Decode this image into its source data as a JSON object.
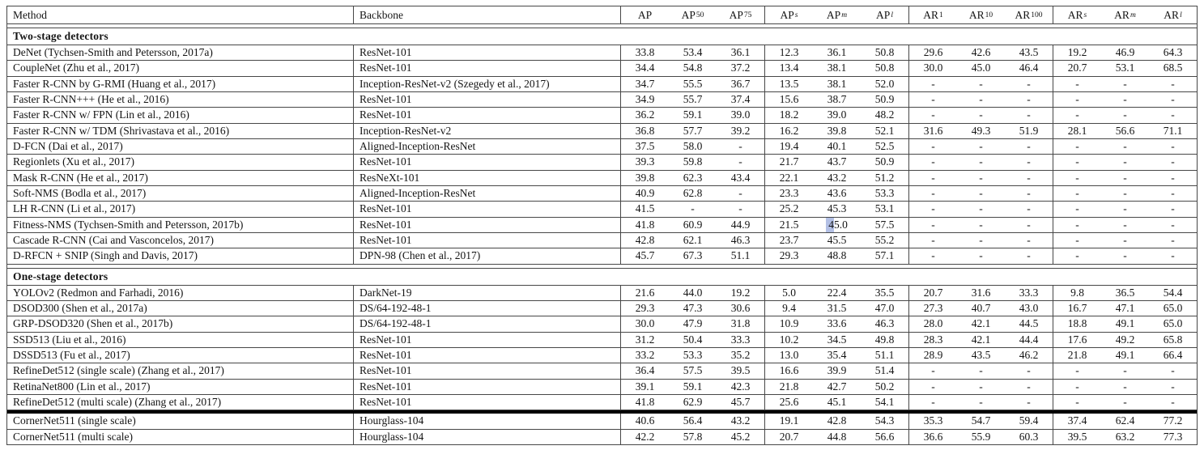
{
  "table": {
    "header": {
      "method": "Method",
      "backbone": "Backbone",
      "metrics": [
        {
          "base": "AP",
          "sup": ""
        },
        {
          "base": "AP",
          "sup": "50"
        },
        {
          "base": "AP",
          "sup": "75"
        },
        {
          "base": "AP",
          "sup": "s"
        },
        {
          "base": "AP",
          "sup": "m"
        },
        {
          "base": "AP",
          "sup": "l"
        },
        {
          "base": "AR",
          "sup": "1"
        },
        {
          "base": "AR",
          "sup": "10"
        },
        {
          "base": "AR",
          "sup": "100"
        },
        {
          "base": "AR",
          "sup": "s"
        },
        {
          "base": "AR",
          "sup": "m"
        },
        {
          "base": "AR",
          "sup": "l"
        }
      ]
    },
    "highlight": {
      "section": 0,
      "row": 11,
      "value": 4,
      "color": "#b3c0e5"
    },
    "sections": [
      {
        "title": "Two-stage detectors",
        "rows": [
          {
            "method": "DeNet (Tychsen-Smith and Petersson, 2017a)",
            "backbone": "ResNet-101",
            "values": [
              "33.8",
              "53.4",
              "36.1",
              "12.3",
              "36.1",
              "50.8",
              "29.6",
              "42.6",
              "43.5",
              "19.2",
              "46.9",
              "64.3"
            ]
          },
          {
            "method": "CoupleNet (Zhu et al., 2017)",
            "backbone": "ResNet-101",
            "values": [
              "34.4",
              "54.8",
              "37.2",
              "13.4",
              "38.1",
              "50.8",
              "30.0",
              "45.0",
              "46.4",
              "20.7",
              "53.1",
              "68.5"
            ]
          },
          {
            "method": "Faster R-CNN by G-RMI (Huang et al., 2017)",
            "backbone": "Inception-ResNet-v2 (Szegedy et al., 2017)",
            "values": [
              "34.7",
              "55.5",
              "36.7",
              "13.5",
              "38.1",
              "52.0",
              "-",
              "-",
              "-",
              "-",
              "-",
              "-"
            ]
          },
          {
            "method": "Faster R-CNN+++ (He et al., 2016)",
            "backbone": "ResNet-101",
            "values": [
              "34.9",
              "55.7",
              "37.4",
              "15.6",
              "38.7",
              "50.9",
              "-",
              "-",
              "-",
              "-",
              "-",
              "-"
            ]
          },
          {
            "method": "Faster R-CNN w/ FPN (Lin et al., 2016)",
            "backbone": "ResNet-101",
            "values": [
              "36.2",
              "59.1",
              "39.0",
              "18.2",
              "39.0",
              "48.2",
              "-",
              "-",
              "-",
              "-",
              "-",
              "-"
            ]
          },
          {
            "method": "Faster R-CNN w/ TDM (Shrivastava et al., 2016)",
            "backbone": "Inception-ResNet-v2",
            "values": [
              "36.8",
              "57.7",
              "39.2",
              "16.2",
              "39.8",
              "52.1",
              "31.6",
              "49.3",
              "51.9",
              "28.1",
              "56.6",
              "71.1"
            ]
          },
          {
            "method": "D-FCN (Dai et al., 2017)",
            "backbone": "Aligned-Inception-ResNet",
            "values": [
              "37.5",
              "58.0",
              "-",
              "19.4",
              "40.1",
              "52.5",
              "-",
              "-",
              "-",
              "-",
              "-",
              "-"
            ]
          },
          {
            "method": "Regionlets (Xu et al., 2017)",
            "backbone": "ResNet-101",
            "values": [
              "39.3",
              "59.8",
              "-",
              "21.7",
              "43.7",
              "50.9",
              "-",
              "-",
              "-",
              "-",
              "-",
              "-"
            ]
          },
          {
            "method": "Mask R-CNN (He et al., 2017)",
            "backbone": "ResNeXt-101",
            "values": [
              "39.8",
              "62.3",
              "43.4",
              "22.1",
              "43.2",
              "51.2",
              "-",
              "-",
              "-",
              "-",
              "-",
              "-"
            ]
          },
          {
            "method": "Soft-NMS (Bodla et al., 2017)",
            "backbone": "Aligned-Inception-ResNet",
            "values": [
              "40.9",
              "62.8",
              "-",
              "23.3",
              "43.6",
              "53.3",
              "-",
              "-",
              "-",
              "-",
              "-",
              "-"
            ]
          },
          {
            "method": "LH R-CNN (Li et al., 2017)",
            "backbone": "ResNet-101",
            "values": [
              "41.5",
              "-",
              "-",
              "25.2",
              "45.3",
              "53.1",
              "-",
              "-",
              "-",
              "-",
              "-",
              "-"
            ]
          },
          {
            "method": "Fitness-NMS (Tychsen-Smith and Petersson, 2017b)",
            "backbone": "ResNet-101",
            "values": [
              "41.8",
              "60.9",
              "44.9",
              "21.5",
              "45.0",
              "57.5",
              "-",
              "-",
              "-",
              "-",
              "-",
              "-"
            ]
          },
          {
            "method": "Cascade R-CNN (Cai and Vasconcelos, 2017)",
            "backbone": "ResNet-101",
            "values": [
              "42.8",
              "62.1",
              "46.3",
              "23.7",
              "45.5",
              "55.2",
              "-",
              "-",
              "-",
              "-",
              "-",
              "-"
            ]
          },
          {
            "method": "D-RFCN + SNIP (Singh and Davis, 2017)",
            "backbone": "DPN-98 (Chen et al., 2017)",
            "values": [
              "45.7",
              "67.3",
              "51.1",
              "29.3",
              "48.8",
              "57.1",
              "-",
              "-",
              "-",
              "-",
              "-",
              "-"
            ]
          }
        ]
      },
      {
        "title": "One-stage detectors",
        "rows": [
          {
            "method": "YOLOv2 (Redmon and Farhadi, 2016)",
            "backbone": "DarkNet-19",
            "values": [
              "21.6",
              "44.0",
              "19.2",
              "5.0",
              "22.4",
              "35.5",
              "20.7",
              "31.6",
              "33.3",
              "9.8",
              "36.5",
              "54.4"
            ]
          },
          {
            "method": "DSOD300 (Shen et al., 2017a)",
            "backbone": "DS/64-192-48-1",
            "values": [
              "29.3",
              "47.3",
              "30.6",
              "9.4",
              "31.5",
              "47.0",
              "27.3",
              "40.7",
              "43.0",
              "16.7",
              "47.1",
              "65.0"
            ]
          },
          {
            "method": "GRP-DSOD320 (Shen et al., 2017b)",
            "backbone": "DS/64-192-48-1",
            "values": [
              "30.0",
              "47.9",
              "31.8",
              "10.9",
              "33.6",
              "46.3",
              "28.0",
              "42.1",
              "44.5",
              "18.8",
              "49.1",
              "65.0"
            ]
          },
          {
            "method": "SSD513 (Liu et al., 2016)",
            "backbone": "ResNet-101",
            "values": [
              "31.2",
              "50.4",
              "33.3",
              "10.2",
              "34.5",
              "49.8",
              "28.3",
              "42.1",
              "44.4",
              "17.6",
              "49.2",
              "65.8"
            ]
          },
          {
            "method": "DSSD513 (Fu et al., 2017)",
            "backbone": "ResNet-101",
            "values": [
              "33.2",
              "53.3",
              "35.2",
              "13.0",
              "35.4",
              "51.1",
              "28.9",
              "43.5",
              "46.2",
              "21.8",
              "49.1",
              "66.4"
            ]
          },
          {
            "method": "RefineDet512 (single scale) (Zhang et al., 2017)",
            "backbone": "ResNet-101",
            "values": [
              "36.4",
              "57.5",
              "39.5",
              "16.6",
              "39.9",
              "51.4",
              "-",
              "-",
              "-",
              "-",
              "-",
              "-"
            ]
          },
          {
            "method": "RetinaNet800 (Lin et al., 2017)",
            "backbone": "ResNet-101",
            "values": [
              "39.1",
              "59.1",
              "42.3",
              "21.8",
              "42.7",
              "50.2",
              "-",
              "-",
              "-",
              "-",
              "-",
              "-"
            ]
          },
          {
            "method": "RefineDet512 (multi scale) (Zhang et al., 2017)",
            "backbone": "ResNet-101",
            "values": [
              "41.8",
              "62.9",
              "45.7",
              "25.6",
              "45.1",
              "54.1",
              "-",
              "-",
              "-",
              "-",
              "-",
              "-"
            ]
          }
        ]
      },
      {
        "title": null,
        "thick_divider": true,
        "rows": [
          {
            "method": "CornerNet511 (single scale)",
            "backbone": "Hourglass-104",
            "values": [
              "40.6",
              "56.4",
              "43.2",
              "19.1",
              "42.8",
              "54.3",
              "35.3",
              "54.7",
              "59.4",
              "37.4",
              "62.4",
              "77.2"
            ]
          },
          {
            "method": "CornerNet511 (multi scale)",
            "backbone": "Hourglass-104",
            "values": [
              "42.2",
              "57.8",
              "45.2",
              "20.7",
              "44.8",
              "56.6",
              "36.6",
              "55.9",
              "60.3",
              "39.5",
              "63.2",
              "77.3"
            ]
          }
        ]
      }
    ]
  }
}
